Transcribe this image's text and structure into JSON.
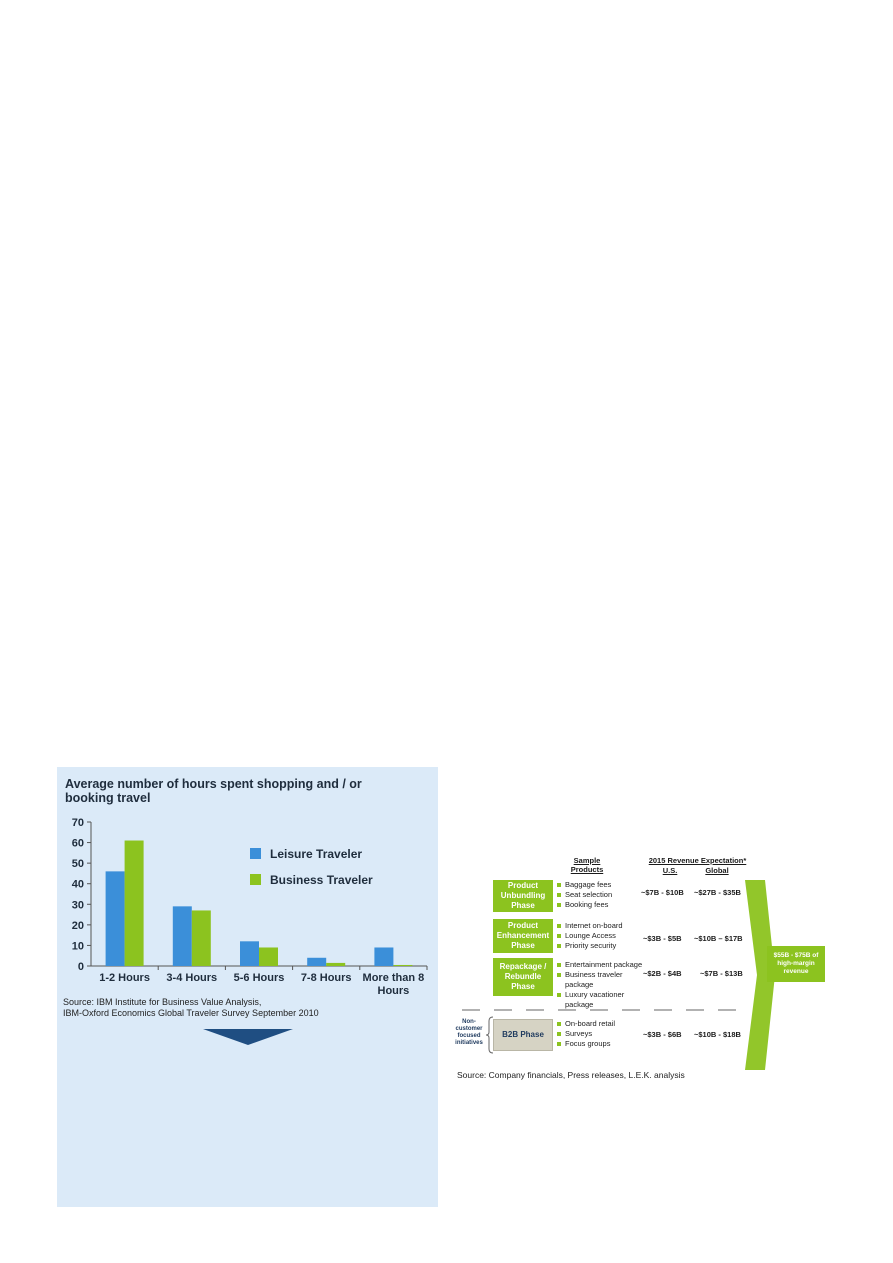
{
  "left_panel": {
    "title": "Average number of hours spent shopping and / or booking travel",
    "source_line1": "Source: IBM Institute for Business Value Analysis,",
    "source_line2": "IBM-Oxford Economics Global Traveler Survey September 2010"
  },
  "chart_data": {
    "type": "bar",
    "title": "Average number of hours spent shopping and / or booking travel",
    "categories": [
      "1-2 Hours",
      "3-4 Hours",
      "5-6 Hours",
      "7-8 Hours",
      "More than 8 Hours"
    ],
    "series": [
      {
        "name": "Leisure Traveler",
        "color": "#3b8fd9",
        "values": [
          46,
          29,
          12,
          4,
          9
        ]
      },
      {
        "name": "Business Traveler",
        "color": "#8cc31f",
        "values": [
          61,
          27,
          9,
          1.5,
          0.5
        ]
      }
    ],
    "ylim": [
      0,
      70
    ],
    "yticks": [
      0,
      10,
      20,
      30,
      40,
      50,
      60,
      70
    ],
    "legend": "right",
    "grid": false
  },
  "diagram": {
    "headers": {
      "sample_products": "Sample Products",
      "revenue_expectation": "2015 Revenue Expectation*",
      "us": "U.S.",
      "global": "Global"
    },
    "phases": [
      {
        "name": "Product Unbundling Phase",
        "products": [
          "Baggage fees",
          "Seat selection",
          "Booking fees"
        ],
        "us": "~$7B - $10B",
        "global": "~$27B - $35B"
      },
      {
        "name": "Product Enhancement Phase",
        "products": [
          "Internet on-board",
          "Lounge Access",
          "Priority security"
        ],
        "us": "~$3B - $5B",
        "global": "~$10B – $17B"
      },
      {
        "name": "Repackage / Rebundle Phase",
        "products": [
          "Entertainment package",
          "Business traveler package",
          "Luxury vacationer package"
        ],
        "us": "~$2B - $4B",
        "global": "~$7B - $13B"
      },
      {
        "name": "B2B Phase",
        "products": [
          "On-board retail",
          "Surveys",
          "Focus groups"
        ],
        "us": "~$3B - $6B",
        "global": "~$10B - $18B"
      }
    ],
    "non_customer_label": "Non-customer focused initiatives",
    "total": "$55B - $75B of high-margin revenue",
    "source": "Source: Company financials, Press releases, L.E.K. analysis"
  }
}
